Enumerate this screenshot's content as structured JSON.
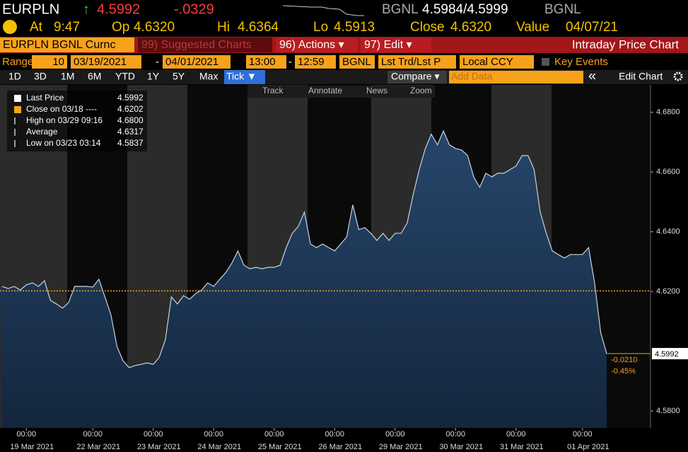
{
  "header": {
    "ticker": "EURPLN",
    "arrow": "↑",
    "price": "4.5992",
    "change": "-.0329",
    "source": "BGNL",
    "bid_ask": "4.5984/4.5999",
    "source2": "BGNL"
  },
  "quote": [
    {
      "label": "At",
      "value": "9:47"
    },
    {
      "label": "Op",
      "value": "4.6320"
    },
    {
      "label": "Hi",
      "value": "4.6364"
    },
    {
      "label": "Lo",
      "value": "4.5913"
    },
    {
      "label": "Close",
      "value": "4.6320"
    },
    {
      "label": "Value",
      "value": "04/07/21"
    }
  ],
  "toolbar": {
    "security": "EURPLN BGNL Curnc",
    "suggested": "99) Suggested Charts",
    "actions": "96) Actions ▾",
    "edit": "97) Edit ▾",
    "title": "Intraday Price Chart"
  },
  "range": {
    "label": "Range",
    "count": "10",
    "start_date": "03/19/2021",
    "sep1": "-",
    "end_date": "04/01/2021",
    "start_time": "13:00",
    "sep2": "-",
    "end_time": "12:59",
    "source": "BGNL",
    "field": "Lst Trd/Lst P",
    "currency": "Local CCY",
    "key_events": "Key Events"
  },
  "periods": {
    "items": [
      "1D",
      "3D",
      "1M",
      "6M",
      "YTD",
      "1Y",
      "5Y",
      "Max",
      "Tick ▼"
    ],
    "selected": 8
  },
  "controls": {
    "compare": "Compare ▾",
    "add_data": "Add Data",
    "collapse": "«",
    "edit_chart": "Edit Chart"
  },
  "tools": [
    "Track",
    "Annotate",
    "News",
    "Zoom"
  ],
  "chart_data": {
    "type": "area",
    "color": "#1d3757",
    "line_color": "#c9d3dc",
    "values": [
      4.6217,
      4.621,
      4.6217,
      4.6205,
      4.6222,
      4.6229,
      4.6217,
      4.6236,
      4.617,
      4.6158,
      4.6144,
      4.6163,
      4.6217,
      4.6217,
      4.6217,
      4.6215,
      4.6241,
      4.6182,
      4.6122,
      4.6016,
      4.5968,
      4.5945,
      4.5952,
      4.5956,
      4.5961,
      4.5956,
      4.598,
      4.6039,
      4.6182,
      4.6158,
      4.6186,
      4.6174,
      4.6193,
      4.6205,
      4.6229,
      4.6217,
      4.6241,
      4.6264,
      4.6295,
      4.6336,
      4.6288,
      4.6276,
      4.6281,
      4.6276,
      4.6281,
      4.6281,
      4.6288,
      4.6347,
      4.6395,
      4.6418,
      4.6466,
      4.6359,
      4.6347,
      4.6359,
      4.6347,
      4.6336,
      4.6359,
      4.6383,
      4.649,
      4.6407,
      4.6414,
      4.6395,
      4.6371,
      4.6395,
      4.6371,
      4.6395,
      4.6395,
      4.643,
      4.6525,
      4.6608,
      4.6679,
      4.6727,
      4.6691,
      4.6738,
      4.6691,
      4.6679,
      4.6674,
      4.6655,
      4.6584,
      4.6549,
      4.6596,
      4.6584,
      4.6596,
      4.6596,
      4.6608,
      4.662,
      4.6655,
      4.6655,
      4.6608,
      4.6466,
      4.6395,
      4.6336,
      4.6324,
      4.6312,
      4.6324,
      4.6324,
      4.6324,
      4.6347,
      4.6229,
      4.6063,
      4.5992
    ],
    "xlim": [
      0,
      100
    ],
    "xticks": [
      {
        "value": 4,
        "label": "00:00",
        "date": "19 Mar 2021"
      },
      {
        "value": 15,
        "label": "00:00",
        "date": "22 Mar 2021"
      },
      {
        "value": 25,
        "label": "00:00",
        "date": "23 Mar 2021"
      },
      {
        "value": 35,
        "label": "00:00",
        "date": "24 Mar 2021"
      },
      {
        "value": 45,
        "label": "00:00",
        "date": "25 Mar 2021"
      },
      {
        "value": 55,
        "label": "00:00",
        "date": "26 Mar 2021"
      },
      {
        "value": 65,
        "label": "00:00",
        "date": "29 Mar 2021"
      },
      {
        "value": 75,
        "label": "00:00",
        "date": "30 Mar 2021"
      },
      {
        "value": 85,
        "label": "00:00",
        "date": "31 Mar 2021"
      },
      {
        "value": 96,
        "label": "00:00",
        "date": "01 Apr 2021"
      }
    ],
    "ylim": [
      4.5743,
      4.6892
    ],
    "yticks": [
      {
        "value": 4.58,
        "label": "4.5800"
      },
      {
        "value": 4.62,
        "label": "4.6200"
      },
      {
        "value": 4.64,
        "label": "4.6400"
      },
      {
        "value": 4.66,
        "label": "4.6600"
      },
      {
        "value": 4.68,
        "label": "4.6800"
      }
    ],
    "prev_close": 4.6202,
    "prev_close_color": "#f0a020",
    "last_label": "4.5992",
    "change_labels": [
      "-0.0210",
      "-0.45%"
    ],
    "legend": [
      {
        "name": "Last Price",
        "value": "4.5992"
      },
      {
        "name": "Close on 03/18 ----",
        "value": "4.6202"
      },
      {
        "name": "High on 03/29 09:16",
        "value": "4.6800"
      },
      {
        "name": "Average",
        "value": "4.6317"
      },
      {
        "name": "Low on 03/23 03:14",
        "value": "4.5837"
      }
    ]
  }
}
